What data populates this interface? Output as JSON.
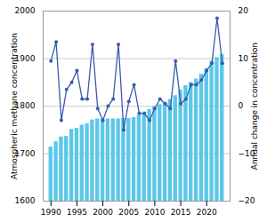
{
  "chart_data": {
    "type": "bar",
    "x": [
      1990,
      1991,
      1992,
      1993,
      1994,
      1995,
      1996,
      1997,
      1998,
      1999,
      2000,
      2001,
      2002,
      2003,
      2004,
      2005,
      2006,
      2007,
      2008,
      2009,
      2010,
      2011,
      2012,
      2013,
      2014,
      2015,
      2016,
      2017,
      2018,
      2019,
      2020,
      2021,
      2022,
      2023
    ],
    "series": [
      {
        "type": "bar",
        "color": "#5BC8E8",
        "values": [
          1714,
          1725,
          1735,
          1736,
          1751,
          1753,
          1760,
          1763,
          1771,
          1773,
          1773,
          1773,
          1773,
          1773,
          1774,
          1774,
          1776,
          1781,
          1785,
          1793,
          1799,
          1803,
          1808,
          1814,
          1822,
          1834,
          1843,
          1850,
          1857,
          1867,
          1879,
          1895,
          1902,
          1909
        ]
      },
      {
        "type": "line",
        "axis": "y2",
        "color": "#3A5BAB",
        "marker": "circle",
        "values": [
          9.5,
          13.5,
          -3.0,
          3.5,
          5.0,
          7.5,
          1.5,
          1.5,
          13.0,
          -0.5,
          -3.0,
          0.0,
          1.5,
          13.0,
          -5.0,
          1.0,
          4.5,
          -1.5,
          -1.5,
          -3.0,
          -0.5,
          1.5,
          0.5,
          -0.5,
          9.5,
          0.5,
          1.5,
          4.5,
          4.5,
          5.5,
          7.5,
          9.0,
          18.5,
          9.0
        ]
      }
    ],
    "ylabel": "Atmospheric methane concentration",
    "y2label": "Annual change in concentration",
    "xlim": [
      1988.5,
      2024.5
    ],
    "xticks": [
      1990,
      1995,
      2000,
      2005,
      2010,
      2015,
      2020
    ],
    "ylim": [
      1600,
      2000
    ],
    "yticks": [
      1600,
      1700,
      1800,
      1900,
      2000
    ],
    "y2lim": [
      -20,
      20
    ],
    "y2ticks": [
      -20,
      -10,
      0,
      10,
      20
    ],
    "grid": "y"
  }
}
